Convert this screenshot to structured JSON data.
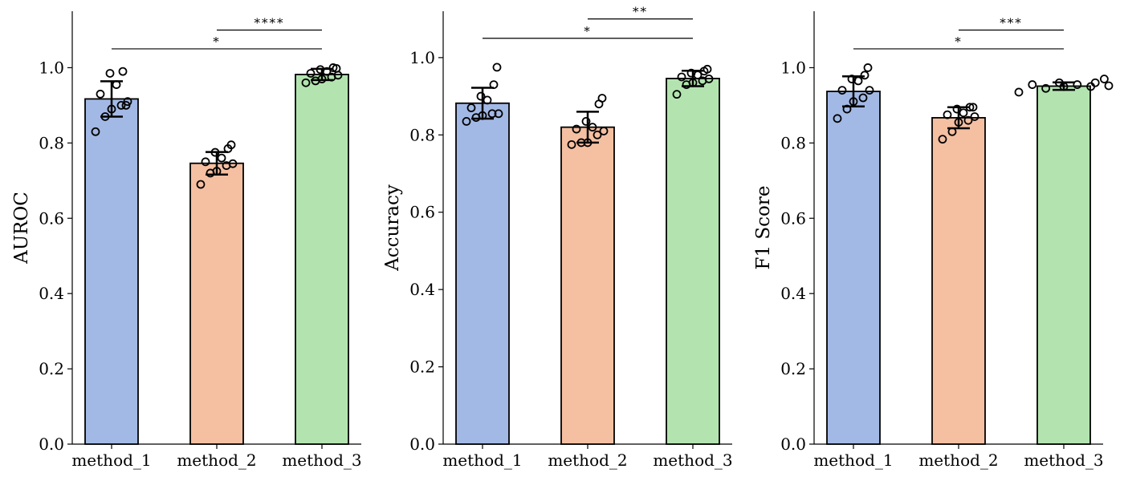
{
  "colors": {
    "method_1": "#a3b9e5",
    "method_2": "#f5bfa2",
    "method_3": "#b3e4b0",
    "edge": "#000000"
  },
  "chart_data": [
    {
      "type": "bar",
      "ylabel": "AUROC",
      "ylim": [
        0,
        1.15
      ],
      "yticks": [
        0.0,
        0.2,
        0.4,
        0.6,
        0.8,
        1.0
      ],
      "ytick_labels": [
        "0.0",
        "0.2",
        "0.4",
        "0.6",
        "0.8",
        "1.0"
      ],
      "categories": [
        "method_1",
        "method_2",
        "method_3"
      ],
      "values": [
        0.917,
        0.746,
        0.982
      ],
      "error": [
        0.047,
        0.03,
        0.015
      ],
      "points": [
        [
          0.83,
          0.87,
          0.89,
          0.9,
          0.91,
          0.93,
          0.955,
          0.985,
          0.99,
          0.9
        ],
        [
          0.69,
          0.72,
          0.725,
          0.74,
          0.745,
          0.75,
          0.76,
          0.775,
          0.785,
          0.795
        ],
        [
          0.96,
          0.965,
          0.97,
          0.975,
          0.98,
          0.985,
          0.99,
          0.995,
          1.0,
          0.998
        ]
      ],
      "significance": [
        {
          "from": "method_1",
          "to": "method_3",
          "label": "*",
          "level": 1.05
        },
        {
          "from": "method_2",
          "to": "method_3",
          "label": "****",
          "level": 1.1
        }
      ]
    },
    {
      "type": "bar",
      "ylabel": "Accuracy",
      "ylim": [
        0,
        1.12
      ],
      "yticks": [
        0.0,
        0.2,
        0.4,
        0.6,
        0.8,
        1.0
      ],
      "ytick_labels": [
        "0.0",
        "0.2",
        "0.4",
        "0.6",
        "0.8",
        "1.0"
      ],
      "categories": [
        "method_1",
        "method_2",
        "method_3"
      ],
      "values": [
        0.882,
        0.82,
        0.946
      ],
      "error": [
        0.04,
        0.04,
        0.02
      ],
      "points": [
        [
          0.835,
          0.845,
          0.85,
          0.855,
          0.855,
          0.87,
          0.89,
          0.9,
          0.93,
          0.975
        ],
        [
          0.775,
          0.78,
          0.78,
          0.8,
          0.81,
          0.815,
          0.82,
          0.835,
          0.88,
          0.895
        ],
        [
          0.905,
          0.93,
          0.935,
          0.94,
          0.945,
          0.95,
          0.955,
          0.96,
          0.965,
          0.97
        ]
      ],
      "significance": [
        {
          "from": "method_1",
          "to": "method_3",
          "label": "*",
          "level": 1.05
        },
        {
          "from": "method_2",
          "to": "method_3",
          "label": "**",
          "level": 1.1
        }
      ]
    },
    {
      "type": "bar",
      "ylabel": "F1 Score",
      "ylim": [
        0,
        1.15
      ],
      "yticks": [
        0.0,
        0.2,
        0.4,
        0.6,
        0.8,
        1.0
      ],
      "ytick_labels": [
        "0.0",
        "0.2",
        "0.4",
        "0.6",
        "0.8",
        "1.0"
      ],
      "categories": [
        "method_1",
        "method_2",
        "method_3"
      ],
      "values": [
        0.937,
        0.867,
        0.951
      ],
      "error": [
        0.04,
        0.028,
        0.01
      ],
      "points": [
        [
          0.865,
          0.89,
          0.91,
          0.92,
          0.94,
          0.94,
          0.965,
          0.97,
          0.98,
          1.0
        ],
        [
          0.81,
          0.83,
          0.855,
          0.86,
          0.87,
          0.875,
          0.88,
          0.89,
          0.895,
          0.895
        ],
        [
          0.935,
          0.945,
          0.95,
          0.95,
          0.952,
          0.955,
          0.955,
          0.96,
          0.96,
          0.97
        ]
      ],
      "significance": [
        {
          "from": "method_1",
          "to": "method_3",
          "label": "*",
          "level": 1.05
        },
        {
          "from": "method_2",
          "to": "method_3",
          "label": "***",
          "level": 1.1
        }
      ]
    }
  ]
}
